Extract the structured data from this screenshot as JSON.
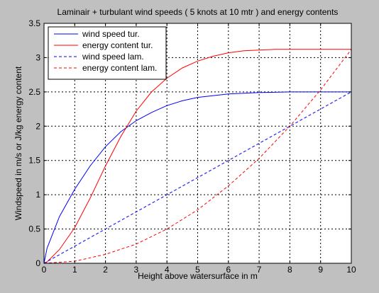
{
  "chart_data": {
    "type": "line",
    "title": "Laminair + turbulant wind speeds ( 5 knots at 10 mtr ) and energy contents",
    "xlabel": "Height above watersurface in m",
    "ylabel": "Windspeed in m/s or J/kg energy content",
    "xlim": [
      0,
      10
    ],
    "ylim": [
      0,
      3.5
    ],
    "xticks": [
      0,
      1,
      2,
      3,
      4,
      5,
      6,
      7,
      8,
      9,
      10
    ],
    "yticks": [
      0,
      0.5,
      1,
      1.5,
      2,
      2.5,
      3,
      3.5
    ],
    "xtick_labels": [
      "0",
      "1",
      "2",
      "3",
      "4",
      "5",
      "6",
      "7",
      "8",
      "9",
      "10"
    ],
    "ytick_labels": [
      "0",
      "0.5",
      "1",
      "1.5",
      "2",
      "2.5",
      "3",
      "3.5"
    ],
    "grid": true,
    "legend_position": "top-left",
    "colors": {
      "background": "#c0c0c0",
      "plot_area": "#ffffff",
      "blue": "#0000ff",
      "red": "#ff0000"
    },
    "series": [
      {
        "name": "wind speed tur.",
        "color": "#0000ff",
        "dash": "solid",
        "x": [
          0,
          0.1,
          0.5,
          1,
          1.5,
          2,
          2.5,
          3,
          3.5,
          4,
          4.5,
          5,
          6,
          7,
          8,
          9,
          10
        ],
        "y": [
          0,
          0.22,
          0.68,
          1.08,
          1.42,
          1.7,
          1.92,
          2.08,
          2.2,
          2.3,
          2.37,
          2.42,
          2.47,
          2.49,
          2.5,
          2.5,
          2.5
        ]
      },
      {
        "name": "energy content tur.",
        "color": "#ff0000",
        "dash": "solid",
        "x": [
          0,
          0.1,
          0.5,
          1,
          1.5,
          2,
          2.5,
          3,
          3.5,
          4,
          4.5,
          5,
          5.5,
          6,
          6.5,
          7,
          7.5,
          8,
          9,
          10
        ],
        "y": [
          0,
          0.02,
          0.2,
          0.52,
          0.95,
          1.42,
          1.85,
          2.22,
          2.5,
          2.7,
          2.85,
          2.95,
          3.02,
          3.07,
          3.1,
          3.11,
          3.12,
          3.12,
          3.12,
          3.12
        ]
      },
      {
        "name": "wind speed lam.",
        "color": "#0000ff",
        "dash": "dashed",
        "x": [
          0,
          10
        ],
        "y": [
          0,
          2.5
        ]
      },
      {
        "name": "energy content lam.",
        "color": "#ff0000",
        "dash": "dashed",
        "x": [
          0,
          1,
          2,
          3,
          4,
          5,
          6,
          7,
          8,
          9,
          10
        ],
        "y": [
          0,
          0.03,
          0.13,
          0.28,
          0.5,
          0.78,
          1.13,
          1.53,
          2.0,
          2.53,
          3.12
        ]
      }
    ]
  }
}
